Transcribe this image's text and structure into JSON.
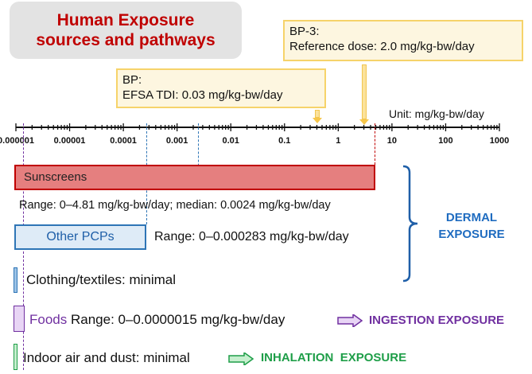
{
  "title": {
    "line1": "Human Exposure",
    "line2": "sources and pathways"
  },
  "notes": {
    "bp3": {
      "line1": "BP-3:",
      "line2": "Reference dose: 2.0 mg/kg-bw/day",
      "value": 2.0
    },
    "bp": {
      "line1": "BP:",
      "line2": "EFSA TDI: 0.03 mg/kg-bw/day",
      "value": 0.03
    }
  },
  "axis": {
    "unit": "Unit: mg/kg-bw/day",
    "scale": "log10",
    "ticks": [
      "0.000001",
      "0.00001",
      "0.0001",
      "0.001",
      "0.01",
      "0.1",
      "1",
      "10",
      "100",
      "1000"
    ]
  },
  "sources": {
    "sunscreens": {
      "label": "Sunscreens",
      "range": "Range: 0–4.81 mg/kg-bw/day; median: 0.0024 mg/kg-bw/day",
      "max": 4.81,
      "median": 0.0024
    },
    "other_pcps": {
      "label": "Other PCPs",
      "range": "Range: 0–0.000283 mg/kg-bw/day",
      "max": 0.000283
    },
    "clothing": {
      "label": "Clothing/textiles: minimal"
    },
    "foods": {
      "label": "Foods",
      "range": "Range: 0–0.0000015 mg/kg-bw/day",
      "max": 1.5e-06
    },
    "indoor_air": {
      "label": "Indoor air and dust: minimal"
    }
  },
  "pathways": {
    "dermal": {
      "line1": "DERMAL",
      "line2": "EXPOSURE",
      "color": "#1f6cc0"
    },
    "ingestion": {
      "label": "INGESTION EXPOSURE",
      "color": "#7030a0"
    },
    "inhalation": {
      "label": "INHALATION  EXPOSURE",
      "color": "#1e9e48"
    }
  },
  "colors": {
    "title": "#c00000",
    "sunscreen_fill": "#e57f7f",
    "sunscreen_border": "#c00000",
    "pcp_fill": "#deebf7",
    "pcp_border": "#2e75b6",
    "foods_fill": "#e8d5f5",
    "foods_border": "#7030a0",
    "air_fill": "#c6efce",
    "air_border": "#1e9e48",
    "note_fill": "#fdf6e0",
    "note_border": "#f6d36a"
  }
}
